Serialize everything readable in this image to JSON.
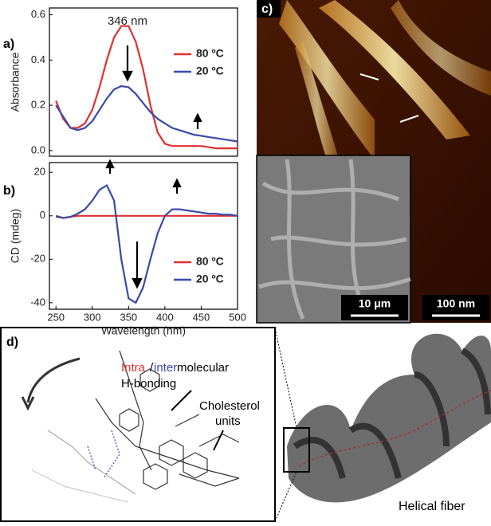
{
  "chart_data": [
    {
      "type": "line",
      "panel_label": "a)",
      "y_label": "Absorbance",
      "annotation": "346 nm",
      "x": [
        250,
        260,
        270,
        280,
        290,
        300,
        310,
        320,
        330,
        340,
        350,
        360,
        370,
        380,
        390,
        400,
        410,
        420,
        430,
        440,
        450,
        460,
        470,
        480,
        490,
        500
      ],
      "series": [
        {
          "name": "80 ºC",
          "color": "#e03030",
          "values": [
            0.22,
            0.14,
            0.1,
            0.1,
            0.12,
            0.18,
            0.28,
            0.4,
            0.5,
            0.55,
            0.55,
            0.48,
            0.36,
            0.2,
            0.08,
            0.03,
            0.02,
            0.02,
            0.02,
            0.02,
            0.02,
            0.015,
            0.01,
            0.01,
            0.01,
            0.01
          ]
        },
        {
          "name": "20 ºC",
          "color": "#3a4aa8",
          "values": [
            0.2,
            0.15,
            0.1,
            0.09,
            0.1,
            0.13,
            0.18,
            0.23,
            0.27,
            0.285,
            0.28,
            0.25,
            0.21,
            0.17,
            0.14,
            0.12,
            0.1,
            0.09,
            0.08,
            0.07,
            0.065,
            0.06,
            0.055,
            0.05,
            0.045,
            0.04
          ]
        }
      ],
      "xlim": [
        241,
        500
      ],
      "ylim": [
        -0.025,
        0.63
      ],
      "yticks": [
        {
          "value": 0,
          "label": "0.0"
        },
        0.2,
        0.4,
        0.6
      ],
      "legend": "right"
    },
    {
      "type": "line",
      "panel_label": "b)",
      "y_label": "CD (mdeg)",
      "x_label": "Wavelength (nm)",
      "x": [
        250,
        260,
        270,
        280,
        290,
        300,
        310,
        320,
        330,
        340,
        350,
        360,
        370,
        380,
        390,
        400,
        410,
        420,
        430,
        440,
        450,
        460,
        470,
        480,
        490,
        500
      ],
      "series": [
        {
          "name": "80 ºC",
          "color": "#e03030",
          "values": [
            -0.5,
            -1,
            -0.5,
            0,
            0,
            0,
            0,
            0,
            0,
            0,
            0,
            0,
            0,
            0,
            0,
            0,
            0,
            0,
            0,
            0,
            0,
            0,
            0,
            0,
            0,
            0
          ]
        },
        {
          "name": "20 ºC",
          "color": "#3a4aa8",
          "values": [
            0,
            -1,
            -0.5,
            1,
            3,
            7,
            12,
            14,
            7,
            -20,
            -38,
            -40,
            -33,
            -20,
            -8,
            0,
            3,
            3,
            2.5,
            2,
            1.5,
            1,
            1,
            0.5,
            0.5,
            0
          ]
        }
      ],
      "xlim": [
        241,
        500
      ],
      "ylim": [
        -43,
        24.5
      ],
      "xticks": [
        250,
        300,
        350,
        400,
        450,
        500
      ],
      "yticks": [
        -40,
        -20,
        0,
        20
      ],
      "legend": "right"
    }
  ],
  "panel_c": {
    "label": "c)",
    "inset_scale": "10 μm",
    "main_scale": "100 nm"
  },
  "panel_d": {
    "label": "d)",
    "intra": "Intra",
    "slash": "/",
    "inter": "inter",
    "molecular": "molecular",
    "hbond": "H-bonding",
    "chol1": "Cholesterol",
    "chol2": "units",
    "fiber": "Helical fiber"
  }
}
